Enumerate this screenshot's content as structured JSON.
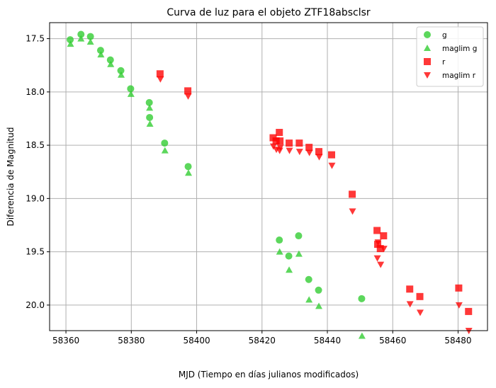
{
  "chart_data": {
    "type": "scatter",
    "title": "Curva de luz para el objeto ZTF18absclsr",
    "xlabel": "MJD (Tiempo en días julianos modificados)",
    "ylabel": "Diferencia de Magnitud",
    "xlim": [
      58355,
      58489
    ],
    "ylim": [
      20.24,
      17.35
    ],
    "y_inverted": true,
    "grid": true,
    "legend_position": "top-right",
    "xticks": [
      58360,
      58380,
      58400,
      58420,
      58440,
      58460,
      58480
    ],
    "yticks": [
      17.5,
      18.0,
      18.5,
      19.0,
      19.5,
      20.0
    ],
    "xtick_labels": [
      "58360",
      "58380",
      "58400",
      "58420",
      "58440",
      "58460",
      "58480"
    ],
    "ytick_labels": [
      "17.5",
      "18.0",
      "18.5",
      "19.0",
      "19.5",
      "20.0"
    ],
    "series": [
      {
        "name": "g",
        "marker": "circle",
        "color": "#2ecc2e",
        "points": [
          [
            58361.3,
            17.51
          ],
          [
            58364.6,
            17.46
          ],
          [
            58367.5,
            17.48
          ],
          [
            58370.6,
            17.61
          ],
          [
            58373.6,
            17.7
          ],
          [
            58376.8,
            17.8
          ],
          [
            58379.8,
            17.97
          ],
          [
            58385.5,
            18.1
          ],
          [
            58385.6,
            18.24
          ],
          [
            58390.2,
            18.48
          ],
          [
            58397.4,
            18.7
          ],
          [
            58425.3,
            19.39
          ],
          [
            58428.2,
            19.54
          ],
          [
            58431.2,
            19.35
          ],
          [
            58434.3,
            19.76
          ],
          [
            58437.3,
            19.86
          ],
          [
            58450.5,
            19.94
          ]
        ]
      },
      {
        "name": "maglim g",
        "marker": "triangle-up",
        "color": "#2ecc2e",
        "points": [
          [
            58361.4,
            17.55
          ],
          [
            58364.6,
            17.5
          ],
          [
            58367.5,
            17.53
          ],
          [
            58370.7,
            17.65
          ],
          [
            58373.7,
            17.74
          ],
          [
            58376.9,
            17.84
          ],
          [
            58379.9,
            18.02
          ],
          [
            58385.6,
            18.15
          ],
          [
            58385.7,
            18.3
          ],
          [
            58390.3,
            18.55
          ],
          [
            58397.5,
            18.76
          ],
          [
            58425.4,
            19.5
          ],
          [
            58428.3,
            19.67
          ],
          [
            58431.3,
            19.52
          ],
          [
            58434.4,
            19.95
          ],
          [
            58437.4,
            20.01
          ],
          [
            58450.6,
            20.29
          ]
        ]
      },
      {
        "name": "r",
        "marker": "square",
        "color": "#ff0000",
        "points": [
          [
            58388.8,
            17.83
          ],
          [
            58397.3,
            17.99
          ],
          [
            58423.4,
            18.43
          ],
          [
            58424.3,
            18.46
          ],
          [
            58425.3,
            18.38
          ],
          [
            58425.5,
            18.46
          ],
          [
            58428.3,
            18.48
          ],
          [
            58431.4,
            18.48
          ],
          [
            58434.4,
            18.52
          ],
          [
            58437.4,
            18.56
          ],
          [
            58441.3,
            18.59
          ],
          [
            58447.6,
            18.96
          ],
          [
            58455.2,
            19.3
          ],
          [
            58455.4,
            19.43
          ],
          [
            58456.2,
            19.47
          ],
          [
            58457.2,
            19.35
          ],
          [
            58465.2,
            19.85
          ],
          [
            58468.3,
            19.92
          ],
          [
            58480.2,
            19.84
          ],
          [
            58483.2,
            20.06
          ]
        ]
      },
      {
        "name": "maglim r",
        "marker": "triangle-down",
        "color": "#ff0000",
        "points": [
          [
            58388.9,
            17.88
          ],
          [
            58397.4,
            18.04
          ],
          [
            58423.5,
            18.51
          ],
          [
            58424.4,
            18.54
          ],
          [
            58425.4,
            18.55
          ],
          [
            58425.6,
            18.52
          ],
          [
            58428.4,
            18.55
          ],
          [
            58431.5,
            18.56
          ],
          [
            58434.5,
            18.57
          ],
          [
            58437.5,
            18.61
          ],
          [
            58441.4,
            18.69
          ],
          [
            58447.7,
            19.12
          ],
          [
            58455.3,
            19.56
          ],
          [
            58455.5,
            19.41
          ],
          [
            58456.3,
            19.62
          ],
          [
            58457.3,
            19.47
          ],
          [
            58465.3,
            19.99
          ],
          [
            58468.4,
            20.07
          ],
          [
            58480.3,
            20.0
          ],
          [
            58483.3,
            20.24
          ]
        ]
      }
    ]
  }
}
